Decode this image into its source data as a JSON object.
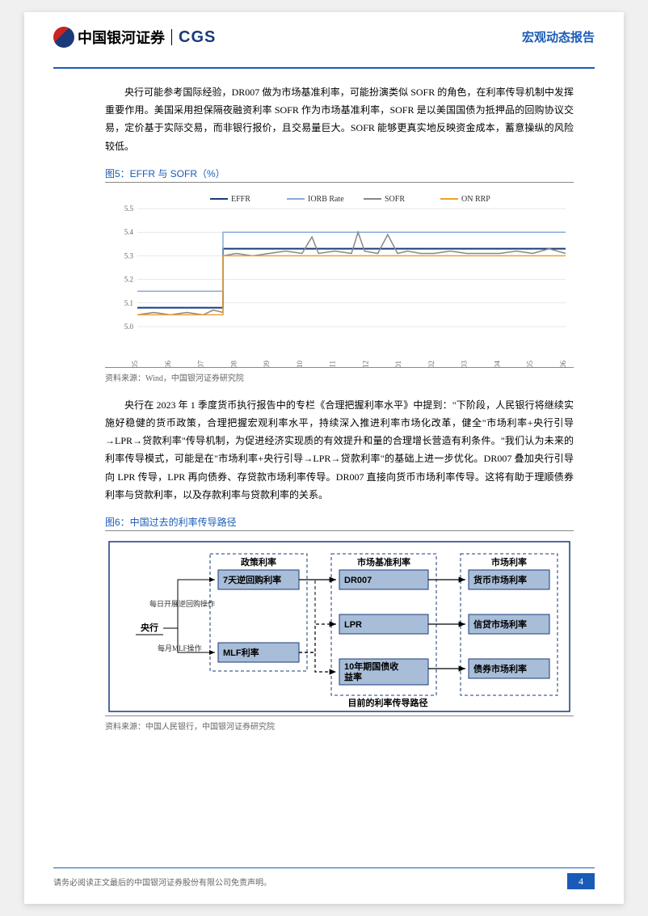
{
  "header": {
    "logo_cn": "中国银河证券",
    "logo_en": "CGS",
    "report_type": "宏观动态报告"
  },
  "para1": "央行可能参考国际经验，DR007 做为市场基准利率，可能扮演类似 SOFR 的角色，在利率传导机制中发挥重要作用。美国采用担保隔夜融资利率 SOFR 作为市场基准利率，SOFR 是以美国国债为抵押品的回购协议交易，定价基于实际交易，而非银行报价，且交易量巨大。SOFR 能够更真实地反映资金成本，蓄意操纵的风险较低。",
  "fig5": {
    "title": "图5：EFFR 与 SOFR（%）",
    "source": "资料来源：Wind，中国银河证券研究院",
    "legend": [
      "EFFR",
      "IORB Rate",
      "SOFR",
      "ON RRP"
    ],
    "colors": [
      "#1a3a7a",
      "#8aaad6",
      "#888888",
      "#f0a030"
    ],
    "ylim": [
      5.0,
      5.5
    ],
    "yticks": [
      5.0,
      5.1,
      5.2,
      5.3,
      5.4,
      5.5
    ],
    "xticks": [
      "2023-05",
      "2023-06",
      "2023-07",
      "2023-08",
      "2023-09",
      "2023-10",
      "2023-11",
      "2023-12",
      "2024-01",
      "2024-02",
      "2024-03",
      "2024-04",
      "2024-05",
      "2024-06"
    ],
    "background_color": "#ffffff",
    "grid_color": "#d0d0d0",
    "series": {
      "EFFR": [
        [
          0,
          5.08
        ],
        [
          2.6,
          5.08
        ],
        [
          2.6,
          5.33
        ],
        [
          13,
          5.33
        ]
      ],
      "IORB": [
        [
          0,
          5.15
        ],
        [
          2.6,
          5.15
        ],
        [
          2.6,
          5.4
        ],
        [
          13,
          5.4
        ]
      ],
      "SOFR": [
        [
          0,
          5.05
        ],
        [
          0.5,
          5.06
        ],
        [
          1,
          5.05
        ],
        [
          1.5,
          5.06
        ],
        [
          2,
          5.05
        ],
        [
          2.3,
          5.07
        ],
        [
          2.6,
          5.06
        ],
        [
          2.6,
          5.3
        ],
        [
          3,
          5.31
        ],
        [
          3.5,
          5.3
        ],
        [
          4,
          5.31
        ],
        [
          4.5,
          5.32
        ],
        [
          5,
          5.31
        ],
        [
          5.3,
          5.38
        ],
        [
          5.5,
          5.31
        ],
        [
          6,
          5.32
        ],
        [
          6.5,
          5.31
        ],
        [
          6.7,
          5.4
        ],
        [
          6.9,
          5.32
        ],
        [
          7.3,
          5.31
        ],
        [
          7.6,
          5.39
        ],
        [
          7.9,
          5.31
        ],
        [
          8.2,
          5.32
        ],
        [
          8.6,
          5.31
        ],
        [
          9,
          5.31
        ],
        [
          9.5,
          5.32
        ],
        [
          10,
          5.31
        ],
        [
          10.5,
          5.31
        ],
        [
          11,
          5.31
        ],
        [
          11.5,
          5.32
        ],
        [
          12,
          5.31
        ],
        [
          12.5,
          5.33
        ],
        [
          13,
          5.31
        ]
      ],
      "ONRRP": [
        [
          0,
          5.05
        ],
        [
          2.6,
          5.05
        ],
        [
          2.6,
          5.3
        ],
        [
          13,
          5.3
        ]
      ]
    }
  },
  "para2": "央行在 2023 年 1 季度货币执行报告中的专栏《合理把握利率水平》中提到：\"下阶段，人民银行将继续实施好稳健的货币政策，合理把握宏观利率水平，持续深入推进利率市场化改革，健全\"市场利率+央行引导→LPR→贷款利率\"传导机制，为促进经济实现质的有效提升和量的合理增长营造有利条件。\"我们认为未来的利率传导模式，可能是在\"市场利率+央行引导→LPR→贷款利率\"的基础上进一步优化。DR007 叠加央行引导向 LPR 传导，LPR 再向债券、存贷款市场利率传导。DR007 直接向货币市场利率传导。这将有助于理顺债券利率与贷款利率，以及存款利率与贷款利率的关系。",
  "fig6": {
    "title": "图6：中国过去的利率传导路径",
    "source": "资料来源：中国人民银行，中国银河证券研究院",
    "group_labels": [
      "政策利率",
      "市场基准利率",
      "市场利率"
    ],
    "central_bank": "央行",
    "nodes": {
      "policy1": "7天逆回购利率",
      "policy2": "MLF利率",
      "bench1": "DR007",
      "bench2": "LPR",
      "bench3": "10年期国债收益率",
      "mkt1": "货币市场利率",
      "mkt2": "信贷市场利率",
      "mkt3": "债券市场利率"
    },
    "annotations": {
      "a1": "每日开展逆回购操作",
      "a2": "每月MLF操作"
    },
    "footer_label": "目前的利率传导路径",
    "box_color": "#a8bdd8",
    "box_stroke": "#1a3a7a",
    "border_color": "#1a3a7a",
    "arrow_color": "#000000"
  },
  "footer": {
    "disclaimer": "请务必阅读正文最后的中国银河证券股份有限公司免责声明。",
    "page_number": "4"
  }
}
